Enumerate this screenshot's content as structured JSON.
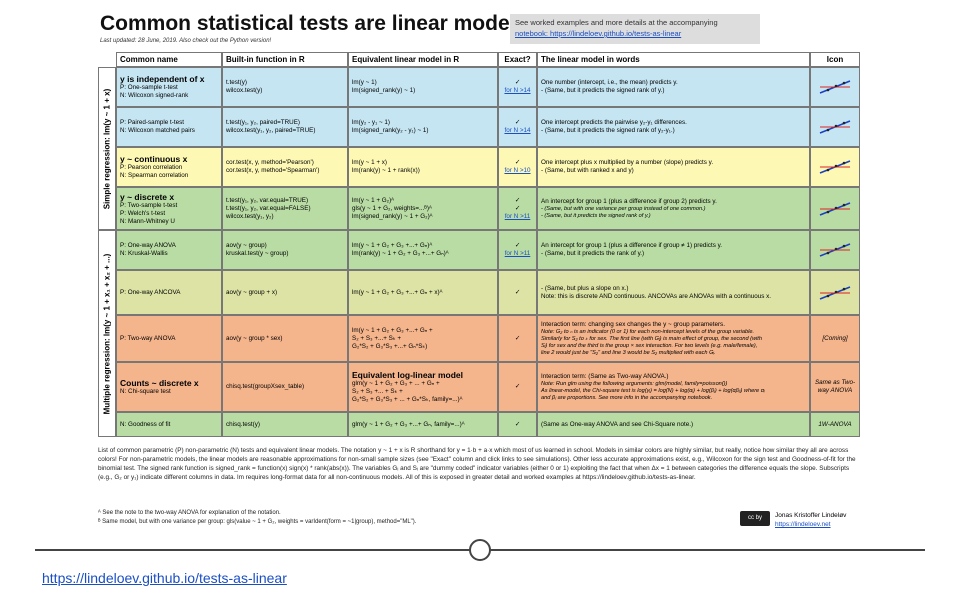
{
  "header": {
    "title": "Common statistical tests are linear models",
    "subtitle": "Last updated: 28 June, 2019. Also check out the Python version!",
    "note": [
      "See worked examples and more details at the accompanying",
      "notebook: https://lindeloev.github.io/tests-as-linear"
    ]
  },
  "table": {
    "headers": [
      "Common name",
      "Built-in function in R",
      "Equivalent linear model in R",
      "Exact?",
      "The linear model in words",
      "Icon"
    ],
    "groups": [
      "Simple regression: lm(y ~ 1 + x)",
      "Multiple regression: lm(y ~ 1 + x₁ + x₂ + ...)"
    ],
    "rows": [
      {
        "color": "#c5e5f2",
        "heading": "y is independent of x",
        "name": [
          "P: One-sample t-test",
          "N: Wilcoxon signed-rank"
        ],
        "builtin": [
          "t.test(y)",
          "wilcox.test(y)"
        ],
        "model": [
          "lm(y ~ 1)",
          "lm(signed_rank(y) ~ 1)"
        ],
        "exact": [
          "✓",
          "for N >14"
        ],
        "words": [
          "One number (intercept, i.e., the mean) predicts y.",
          "- (Same, but it predicts the signed rank of y.)"
        ]
      },
      {
        "color": "#c5e5f2",
        "name": [
          "P: Paired-sample t-test",
          "N: Wilcoxon matched pairs"
        ],
        "builtin": [
          "t.test(y₁, y₂, paired=TRUE)",
          "wilcox.test(y₁, y₂, paired=TRUE)"
        ],
        "model": [
          "lm(y₂ - y₁ ~ 1)",
          "lm(signed_rank(y₂ - y₁) ~ 1)"
        ],
        "exact": [
          "✓",
          "for N >14"
        ],
        "words": [
          "One intercept predicts the pairwise y₂-y₁ differences.",
          "- (Same, but it predicts the signed rank of y₂-y₁.)"
        ]
      },
      {
        "color": "#fdf8b4",
        "heading": "y ~ continuous x",
        "name": [
          "P: Pearson correlation",
          "N: Spearman correlation"
        ],
        "builtin": [
          "cor.test(x, y, method='Pearson')",
          "cor.test(x, y, method='Spearman')"
        ],
        "model": [
          "lm(y ~ 1 + x)",
          "lm(rank(y) ~ 1 + rank(x))"
        ],
        "exact": [
          "✓",
          "for N >10"
        ],
        "words": [
          "One intercept plus x multiplied by a number (slope) predicts y.",
          "- (Same, but with ranked x and y)"
        ]
      },
      {
        "color": "#b9dca4",
        "heading": "y ~ discrete x",
        "name": [
          "P: Two-sample t-test",
          "P: Welch's t-test",
          "N: Mann-Whitney U"
        ],
        "builtin": [
          "t.test(y₁, y₂, var.equal=TRUE)",
          "t.test(y₁, y₂, var.equal=FALSE)",
          "wilcox.test(y₁, y₂)"
        ],
        "model": [
          "lm(y ~ 1 + G₂)ᴬ",
          "gls(y ~ 1 + G₂, weights=...ᴮ)ᴬ",
          "lm(signed_rank(y) ~ 1 + G₂)ᴬ"
        ],
        "exact": [
          "✓",
          "✓",
          "for N >11"
        ],
        "words": [
          "An intercept for group 1 (plus a difference if group 2) predicts y.",
          "- (Same, but with one variance per group instead of one common.)",
          "- (Same, but it predicts the signed rank of y.)"
        ]
      },
      {
        "color": "#b9dca4",
        "name": [
          "P: One-way ANOVA",
          "N: Kruskal-Wallis"
        ],
        "builtin": [
          "aov(y ~ group)",
          "kruskal.test(y ~ group)"
        ],
        "model": [
          "lm(y ~ 1 + G₂ + G₃ +...+ Gₙ)ᴬ",
          "lm(rank(y) ~ 1 + G₂ + G₃ +...+ Gₙ)ᴬ"
        ],
        "exact": [
          "✓",
          "for N >11"
        ],
        "words": [
          "An intercept for group 1 (plus a difference if group ≠ 1) predicts y.",
          "- (Same, but it predicts the rank of y.)"
        ]
      },
      {
        "color": "#dce3a4",
        "name": [
          "P: One-way ANCOVA"
        ],
        "builtin": [
          "aov(y ~ group + x)"
        ],
        "model": [
          "lm(y ~ 1 + G₂ + G₃ +...+ Gₙ + x)ᴬ"
        ],
        "exact": [
          "✓"
        ],
        "words": [
          "- (Same, but plus a slope on x.)",
          "Note: this is discrete AND continuous. ANCOVAs are ANOVAs with a continuous x."
        ]
      },
      {
        "color": "#f4b48c",
        "name": [
          "P: Two-way ANOVA"
        ],
        "builtin": [
          "aov(y ~ group * sex)"
        ],
        "model": [
          "lm(y ~ 1 + G₂ + G₃ +...+ Gₙ +",
          "S₂ + S₃ +...+ Sₖ +",
          "G₂*S₂ + G₃*S₃ +...+ Gₙ*Sₖ)"
        ],
        "exact": [
          "✓"
        ],
        "words": [
          "Interaction term: changing sex changes the y ~ group parameters.",
          "Note: G₂ to ₙ is an indicator (0 or 1) for each non-intercept levels of the group variable.",
          "Similarly for S₂ to ₖ for sex. The first line (with Gᵢ) is main effect of group, the second (with",
          "Sᵢ) for sex and the third is the group × sex interaction. For two levels (e.g. male/female),",
          "line 2 would just be \"S₂\" and line 3 would be S₂ multiplied with each Gᵢ."
        ],
        "icon": "[Coming]"
      },
      {
        "color": "#f4b48c",
        "heading": "Counts ~ discrete x",
        "name": [
          "N: Chi-square test"
        ],
        "builtin": [
          "chisq.test(groupXsex_table)"
        ],
        "model_heading": "Equivalent log-linear model",
        "model": [
          "glm(y ~ 1 + G₂ + G₃ + ... + Gₙ +",
          "S₂ + S₃ +... + Sₖ +",
          "G₂*S₂ + G₃*S₃ + ... + Gₙ*Sₖ, family=...)ᴬ"
        ],
        "exact": [
          "✓"
        ],
        "words": [
          "Interaction term: (Same as Two-way ANOVA.)",
          "Note: Run glm using the following arguments: glm(model, family=poisson())",
          "As linear-model, the Chi-square test is log(yᵢ) = log(N) + log(αᵢ) + log(βⱼ) + log(αβᵢⱼ) where αᵢ",
          "and βⱼ are proportions. See more info in the accompanying notebook."
        ],
        "icon": "Same as Two-way ANOVA"
      },
      {
        "color": "#b9dca4",
        "name": [
          "N: Goodness of fit"
        ],
        "builtin": [
          "chisq.test(y)"
        ],
        "model": [
          "glm(y ~ 1 + G₂ + G₃ +...+ Gₙ, family=...)ᴬ"
        ],
        "exact": [
          "✓"
        ],
        "words": [
          "(Same as One-way ANOVA and see Chi-Square note.)"
        ],
        "icon": "1W-ANOVA"
      }
    ]
  },
  "footer": {
    "paragraph": "List of common parametric (P) non-parametric (N) tests and equivalent linear models. The notation y ~ 1 + x is R shorthand for y = 1·b + a·x which most of us learned in school. Models in similar colors are highly similar, but really, notice how similar they all are across colors! For non-parametric models, the linear models are reasonable approximations for non-small sample sizes (see \"Exact\" column and click links to see simulations). Other less accurate approximations exist, e.g., Wilcoxon for the sign test and Goodness-of-fit for the binomial test. The signed rank function is signed_rank = function(x) sign(x) * rank(abs(x)). The variables Gᵢ and Sᵢ are \"dummy coded\" indicator variables (either 0 or 1) exploiting the fact that when Δx = 1 between categories the difference equals the slope. Subscripts (e.g., G₂ or y₁) indicate different columns in data. lm requires long-format data for all non-continuous models. All of this is exposed in greater detail and worked examples at https://lindeloev.github.io/tests-as-linear.",
    "notes": [
      "ᴬ See the note to the two-way ANOVA for explanation of the notation.",
      "ᴮ Same model, but with one variance per group: gls(value ~ 1 + G₂, weights = varIdent(form = ~1|group), method=\"ML\")."
    ],
    "license": "cc by",
    "author": "Jonas Kristoffer Lindeløv",
    "author_url": "https://lindeloev.net"
  },
  "link": "https://lindeloev.github.io/tests-as-linear"
}
